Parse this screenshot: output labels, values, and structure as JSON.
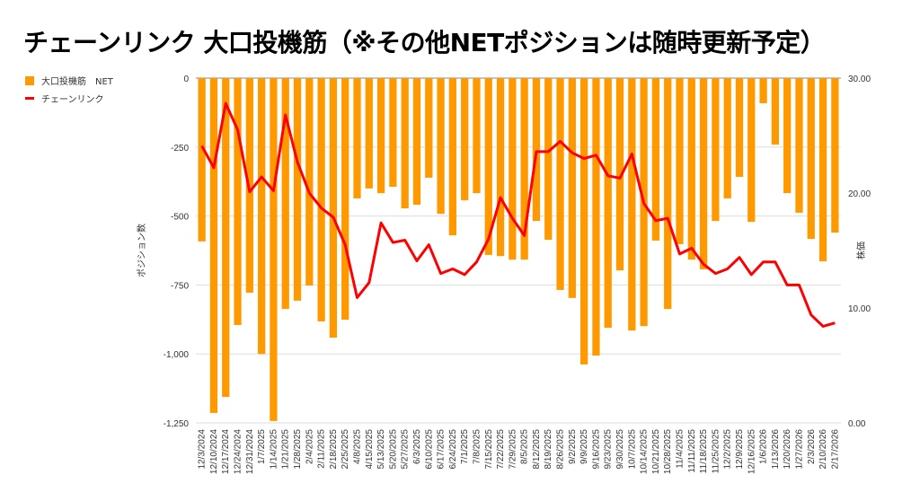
{
  "chart_data": {
    "type": "bar+line",
    "title": "チェーンリンク 大口投機筋（※その他NETポジションは随時更新予定）",
    "legend_position": "top-left",
    "ylabel_left": "ポジション数",
    "ylabel_right": "株価",
    "ylim_left": [
      -1250,
      0
    ],
    "yticks_left": [
      "0",
      "-250",
      "-500",
      "-750",
      "-1,000",
      "-1,250"
    ],
    "ylim_right": [
      0,
      30
    ],
    "yticks_right": [
      "30.00",
      "20.00",
      "10.00",
      "0.00"
    ],
    "grid": true,
    "categories": [
      "12/3/2024",
      "12/10/2024",
      "12/17/2024",
      "12/24/2024",
      "12/31/2024",
      "1/7/2025",
      "1/14/2025",
      "1/21/2025",
      "1/28/2025",
      "2/4/2025",
      "2/11/2025",
      "2/18/2025",
      "2/25/2025",
      "4/8/2025",
      "4/15/2025",
      "5/13/2025",
      "5/20/2025",
      "5/27/2025",
      "6/3/2025",
      "6/10/2025",
      "6/17/2025",
      "6/24/2025",
      "7/1/2025",
      "7/8/2025",
      "7/15/2025",
      "7/22/2025",
      "7/29/2025",
      "8/5/2025",
      "8/12/2025",
      "8/19/2025",
      "8/26/2025",
      "9/2/2025",
      "9/9/2025",
      "9/16/2025",
      "9/23/2025",
      "9/30/2025",
      "10/7/2025",
      "10/14/2025",
      "10/21/2025",
      "10/28/2025",
      "11/4/2025",
      "11/11/2025",
      "11/18/2025",
      "11/25/2025",
      "12/2/2025",
      "12/9/2025",
      "12/16/2025",
      "1/6/2026",
      "1/13/2026",
      "1/20/2026",
      "1/27/2026",
      "2/3/2026",
      "2/10/2026",
      "2/17/2026"
    ],
    "series": [
      {
        "name": "大口投機筋　NET",
        "type": "bar",
        "axis": "left",
        "color": "#ff9900",
        "values": [
          -592,
          -1214,
          -1156,
          -895,
          -778,
          -1000,
          -1243,
          -837,
          -807,
          -752,
          -882,
          -941,
          -876,
          -436,
          -400,
          -417,
          -394,
          -472,
          -459,
          -361,
          -492,
          -570,
          -443,
          -417,
          -641,
          -645,
          -658,
          -658,
          -518,
          -586,
          -768,
          -797,
          -1038,
          -1006,
          -905,
          -697,
          -915,
          -899,
          -589,
          -837,
          -602,
          -658,
          -693,
          -518,
          -436,
          -358,
          -521,
          -91,
          -241,
          -417,
          -488,
          -583,
          -664,
          -560
        ]
      },
      {
        "name": "チェーンリンク",
        "type": "line",
        "axis": "right",
        "color": "#ff0000",
        "values": [
          24.1,
          22.2,
          27.8,
          25.5,
          20.1,
          21.4,
          20.2,
          26.8,
          22.7,
          20.0,
          18.7,
          17.9,
          15.5,
          10.9,
          12.2,
          17.4,
          15.7,
          15.9,
          14.1,
          15.5,
          13.0,
          13.4,
          12.9,
          14.0,
          16.0,
          19.6,
          17.8,
          16.3,
          23.6,
          23.6,
          24.5,
          23.5,
          23.0,
          23.3,
          21.5,
          21.3,
          23.4,
          19.1,
          17.6,
          17.8,
          14.7,
          15.2,
          13.8,
          13.0,
          13.4,
          14.4,
          12.9,
          14.0,
          14.0,
          12.0,
          12.0,
          9.4,
          8.4,
          8.7
        ]
      }
    ]
  }
}
